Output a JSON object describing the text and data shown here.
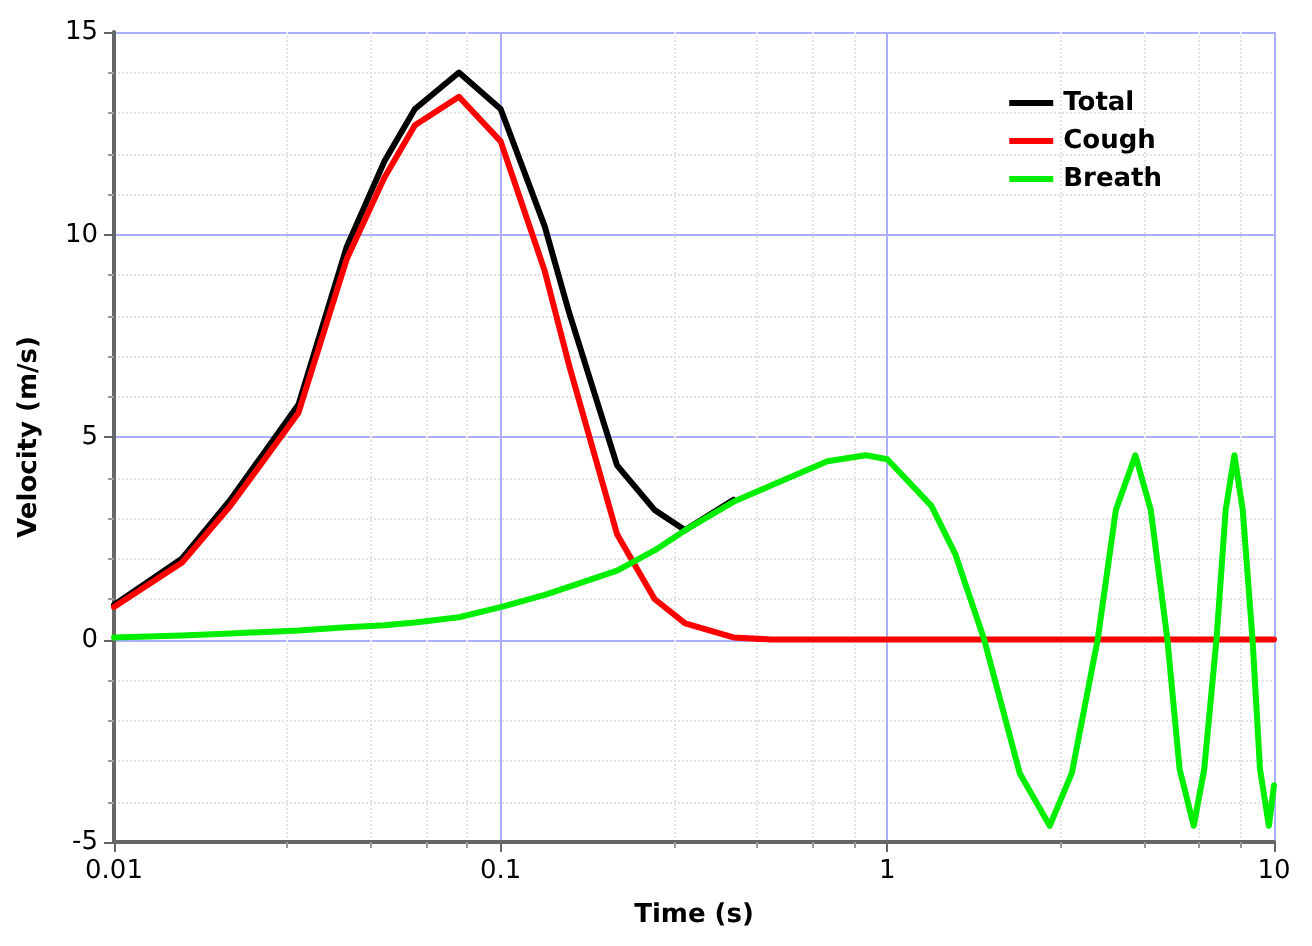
{
  "chart_data": {
    "type": "line",
    "xlabel": "Time (s)",
    "ylabel": "Velocity (m/s)",
    "log": "x",
    "x": [
      0.01,
      0.015,
      0.02,
      0.03,
      0.04,
      0.05,
      0.06,
      0.078,
      0.1,
      0.13,
      0.15,
      0.2,
      0.25,
      0.3,
      0.4,
      0.5,
      0.7,
      0.88,
      1,
      1.3,
      1.5,
      1.78,
      2.2,
      2.63,
      3.0,
      3.5,
      3.9,
      4.38,
      4.8,
      5.3,
      5.7,
      6.2,
      6.6,
      7.1,
      7.5,
      7.9,
      8.3,
      8.8,
      9.2,
      9.7,
      10
    ],
    "series": [
      {
        "name": "Total",
        "color": "#000000",
        "values": [
          0.85,
          2.0,
          3.45,
          5.8,
          9.7,
          11.8,
          13.1,
          14.0,
          13.1,
          10.2,
          8.1,
          4.3,
          3.2,
          2.7,
          3.45,
          null,
          null,
          null,
          null,
          null,
          null,
          null,
          null,
          null,
          null,
          null,
          null,
          null,
          null,
          null,
          null,
          null,
          null,
          null,
          null,
          null,
          null,
          null,
          null,
          null,
          null
        ]
      },
      {
        "name": "Cough",
        "color": "#ff0000",
        "values": [
          0.8,
          1.9,
          3.3,
          5.6,
          9.4,
          11.4,
          12.7,
          13.4,
          12.3,
          9.1,
          6.8,
          2.6,
          1.0,
          0.4,
          0.05,
          0,
          0,
          0,
          0,
          0,
          0,
          0,
          0,
          0,
          0,
          0,
          0,
          0,
          0,
          0,
          0,
          0,
          0,
          0,
          0,
          0,
          0,
          0,
          0,
          0,
          0
        ]
      },
      {
        "name": "Breath",
        "color": "#00ee00",
        "values": [
          0.05,
          0.1,
          0.15,
          0.22,
          0.3,
          0.35,
          0.42,
          0.55,
          0.8,
          1.1,
          1.3,
          1.7,
          2.2,
          2.7,
          3.4,
          3.8,
          4.4,
          4.55,
          4.45,
          3.3,
          2.1,
          0,
          -3.3,
          -4.6,
          -3.3,
          0,
          3.2,
          4.55,
          3.2,
          0,
          -3.2,
          -4.6,
          -3.2,
          0,
          3.2,
          4.55,
          3.2,
          0,
          -3.2,
          -4.6,
          -3.6
        ]
      }
    ],
    "xlim": [
      0.01,
      10
    ],
    "xticks": [
      0.01,
      0.1,
      1,
      10
    ],
    "ylim": [
      -5,
      15
    ],
    "yticks": [
      -5,
      0,
      5,
      10,
      15
    ],
    "grid": true,
    "legend": "top right"
  }
}
